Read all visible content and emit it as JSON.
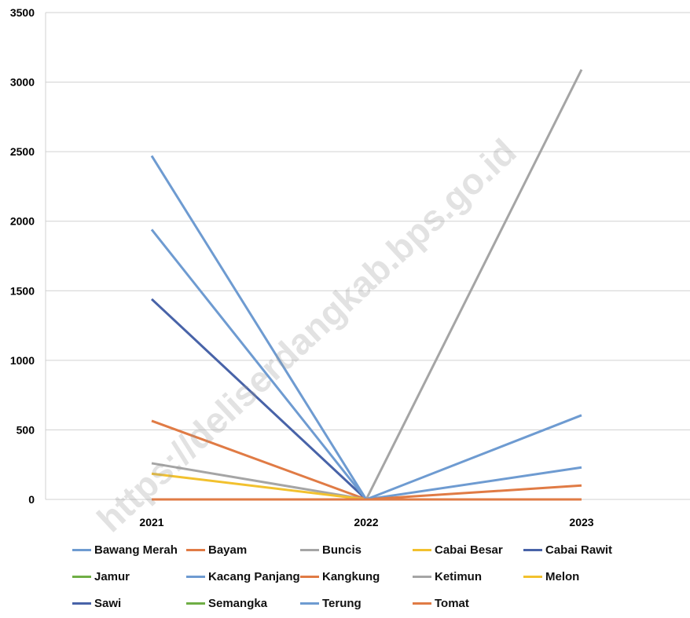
{
  "watermark": "https://deliserdangkab.bps.go.id",
  "chart_data": {
    "type": "line",
    "categories": [
      "2021",
      "2022",
      "2023"
    ],
    "ylim": [
      0,
      3500
    ],
    "yticks": [
      "0",
      "500",
      "1000",
      "1500",
      "2000",
      "2500",
      "3000",
      "3500"
    ],
    "grid": true,
    "legend_position": "bottom",
    "series": [
      {
        "name": "Bawang Merah",
        "color": "#6E9BD1",
        "values": [
          0,
          0,
          0
        ]
      },
      {
        "name": "Bayam",
        "color": "#E07B45",
        "values": [
          0,
          0,
          0
        ]
      },
      {
        "name": "Buncis",
        "color": "#A5A5A5",
        "values": [
          0,
          0,
          0
        ]
      },
      {
        "name": "Cabai Besar",
        "color": "#F2C12E",
        "values": [
          0,
          0,
          0
        ]
      },
      {
        "name": "Cabai Rawit",
        "color": "#4863A8",
        "values": [
          1440,
          0,
          0
        ]
      },
      {
        "name": "Jamur",
        "color": "#6FAE45",
        "values": [
          0,
          0,
          0
        ]
      },
      {
        "name": "Kacang Panjang",
        "color": "#6E9BD1",
        "values": [
          1940,
          0,
          230
        ]
      },
      {
        "name": "Kangkung",
        "color": "#E07B45",
        "values": [
          565,
          0,
          100
        ]
      },
      {
        "name": "Ketimun",
        "color": "#A5A5A5",
        "values": [
          260,
          0,
          3090
        ]
      },
      {
        "name": "Melon",
        "color": "#F2C12E",
        "values": [
          185,
          0,
          0
        ]
      },
      {
        "name": "Sawi",
        "color": "#4863A8",
        "values": [
          0,
          0,
          0
        ]
      },
      {
        "name": "Semangka",
        "color": "#6FAE45",
        "values": [
          0,
          0,
          0
        ]
      },
      {
        "name": "Terung",
        "color": "#6E9BD1",
        "values": [
          2470,
          0,
          605
        ]
      },
      {
        "name": "Tomat",
        "color": "#E07B45",
        "values": [
          0,
          0,
          0
        ]
      }
    ]
  }
}
